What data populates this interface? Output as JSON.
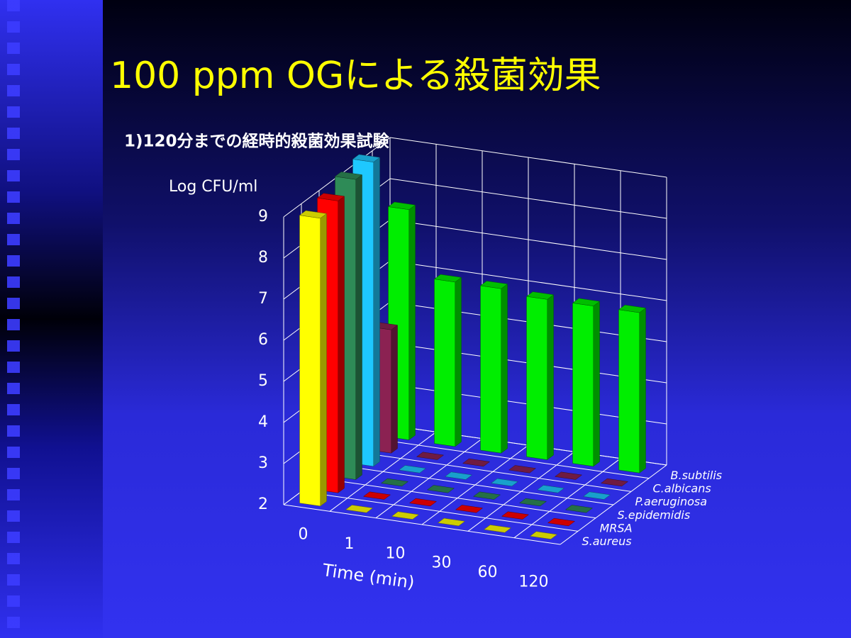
{
  "chart_data": {
    "type": "bar3d",
    "title": "100 ppm OGによる殺菌効果",
    "subtitle": "1)120分までの経時的殺菌効果試験",
    "ylabel": "Log CFU/ml",
    "xlabel": "Time (min)",
    "categories": [
      "0",
      "1",
      "10",
      "30",
      "60",
      "120"
    ],
    "series": [
      {
        "name": "S.aureus",
        "color": "#ffff00",
        "values": [
          9.0,
          2,
          2,
          2,
          2,
          2
        ]
      },
      {
        "name": "MRSA",
        "color": "#ff0000",
        "values": [
          9.1,
          2,
          2,
          2,
          2,
          2
        ]
      },
      {
        "name": "S.epidemidis",
        "color": "#2e8b57",
        "values": [
          9.3,
          2,
          2,
          2,
          2,
          2
        ]
      },
      {
        "name": "P.aeruginosa",
        "color": "#1ec8ff",
        "values": [
          9.4,
          2,
          2,
          2,
          2,
          2
        ]
      },
      {
        "name": "C.albicans",
        "color": "#8b2252",
        "values": [
          5.0,
          2,
          2,
          2,
          2,
          2
        ]
      },
      {
        "name": "B.subtilis",
        "color": "#00ee00",
        "values": [
          7.6,
          6.0,
          6.0,
          5.9,
          5.9,
          5.9
        ]
      }
    ],
    "ylim": [
      2,
      9
    ],
    "yticks": [
      2,
      3,
      4,
      5,
      6,
      7,
      8,
      9
    ],
    "grid": true
  }
}
